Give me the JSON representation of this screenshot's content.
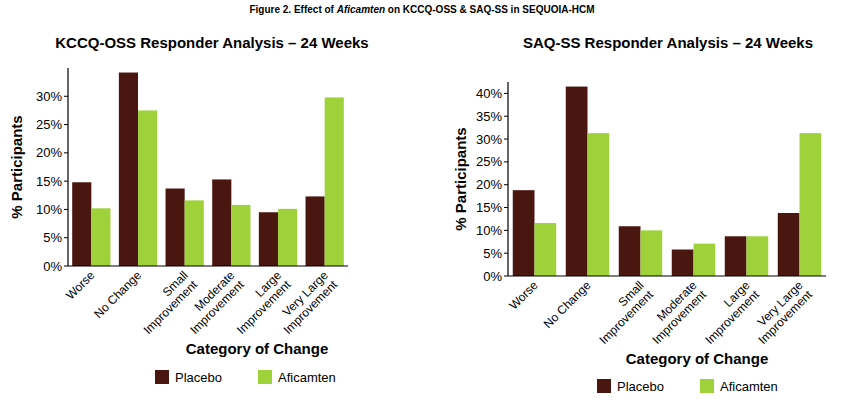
{
  "figure_title": "Figure 2. Effect of Aficamten on KCCQ-OSS & SAQ-SS in SEQUOIA-HCM",
  "chart_data": [
    {
      "type": "bar",
      "title": "KCCQ-OSS Responder Analysis – 24 Weeks",
      "x_label": "Category of Change",
      "y_label": "% Participants",
      "categories": [
        "Worse",
        "No Change",
        "Small Improvement",
        "Moderate Improvement",
        "Large Improvement",
        "Very Large Improvement"
      ],
      "series": [
        {
          "name": "Placebo",
          "color": "#4a1610",
          "values": [
            14.8,
            34.2,
            13.7,
            15.3,
            9.5,
            12.3
          ]
        },
        {
          "name": "Aficamten",
          "color": "#9fd13b",
          "values": [
            10.2,
            27.5,
            11.6,
            10.8,
            10.1,
            29.8
          ]
        }
      ],
      "ylim": [
        0,
        35
      ],
      "yticks": [
        {
          "value": 0,
          "label": "0%"
        },
        {
          "value": 5,
          "label": "5%"
        },
        {
          "value": 10,
          "label": "10%"
        },
        {
          "value": 15,
          "label": "15%"
        },
        {
          "value": 20,
          "label": "20%"
        },
        {
          "value": 25,
          "label": "25%"
        },
        {
          "value": 30,
          "label": "30%"
        }
      ],
      "grid": false,
      "legend": "bottom"
    },
    {
      "type": "bar",
      "title": "SAQ-SS Responder Analysis – 24 Weeks",
      "x_label": "Category of Change",
      "y_label": "% Participants",
      "categories": [
        "Worse",
        "No Change",
        "Small Improvement",
        "Moderate Improvement",
        "Large Improvement",
        "Very Large Improvement"
      ],
      "series": [
        {
          "name": "Placebo",
          "color": "#4a1610",
          "values": [
            18.8,
            41.5,
            10.9,
            5.8,
            8.7,
            13.8
          ]
        },
        {
          "name": "Aficamten",
          "color": "#9fd13b",
          "values": [
            11.6,
            31.3,
            10.0,
            7.1,
            8.7,
            31.3
          ]
        }
      ],
      "ylim": [
        0,
        42.5
      ],
      "yticks": [
        {
          "value": 0,
          "label": "0%"
        },
        {
          "value": 5,
          "label": "5%"
        },
        {
          "value": 10,
          "label": "10%"
        },
        {
          "value": 15,
          "label": "15%"
        },
        {
          "value": 20,
          "label": "20%"
        },
        {
          "value": 25,
          "label": "25%"
        },
        {
          "value": 30,
          "label": "30%"
        },
        {
          "value": 35,
          "label": "35%"
        },
        {
          "value": 40,
          "label": "40%"
        }
      ],
      "grid": false,
      "legend": "bottom"
    }
  ]
}
